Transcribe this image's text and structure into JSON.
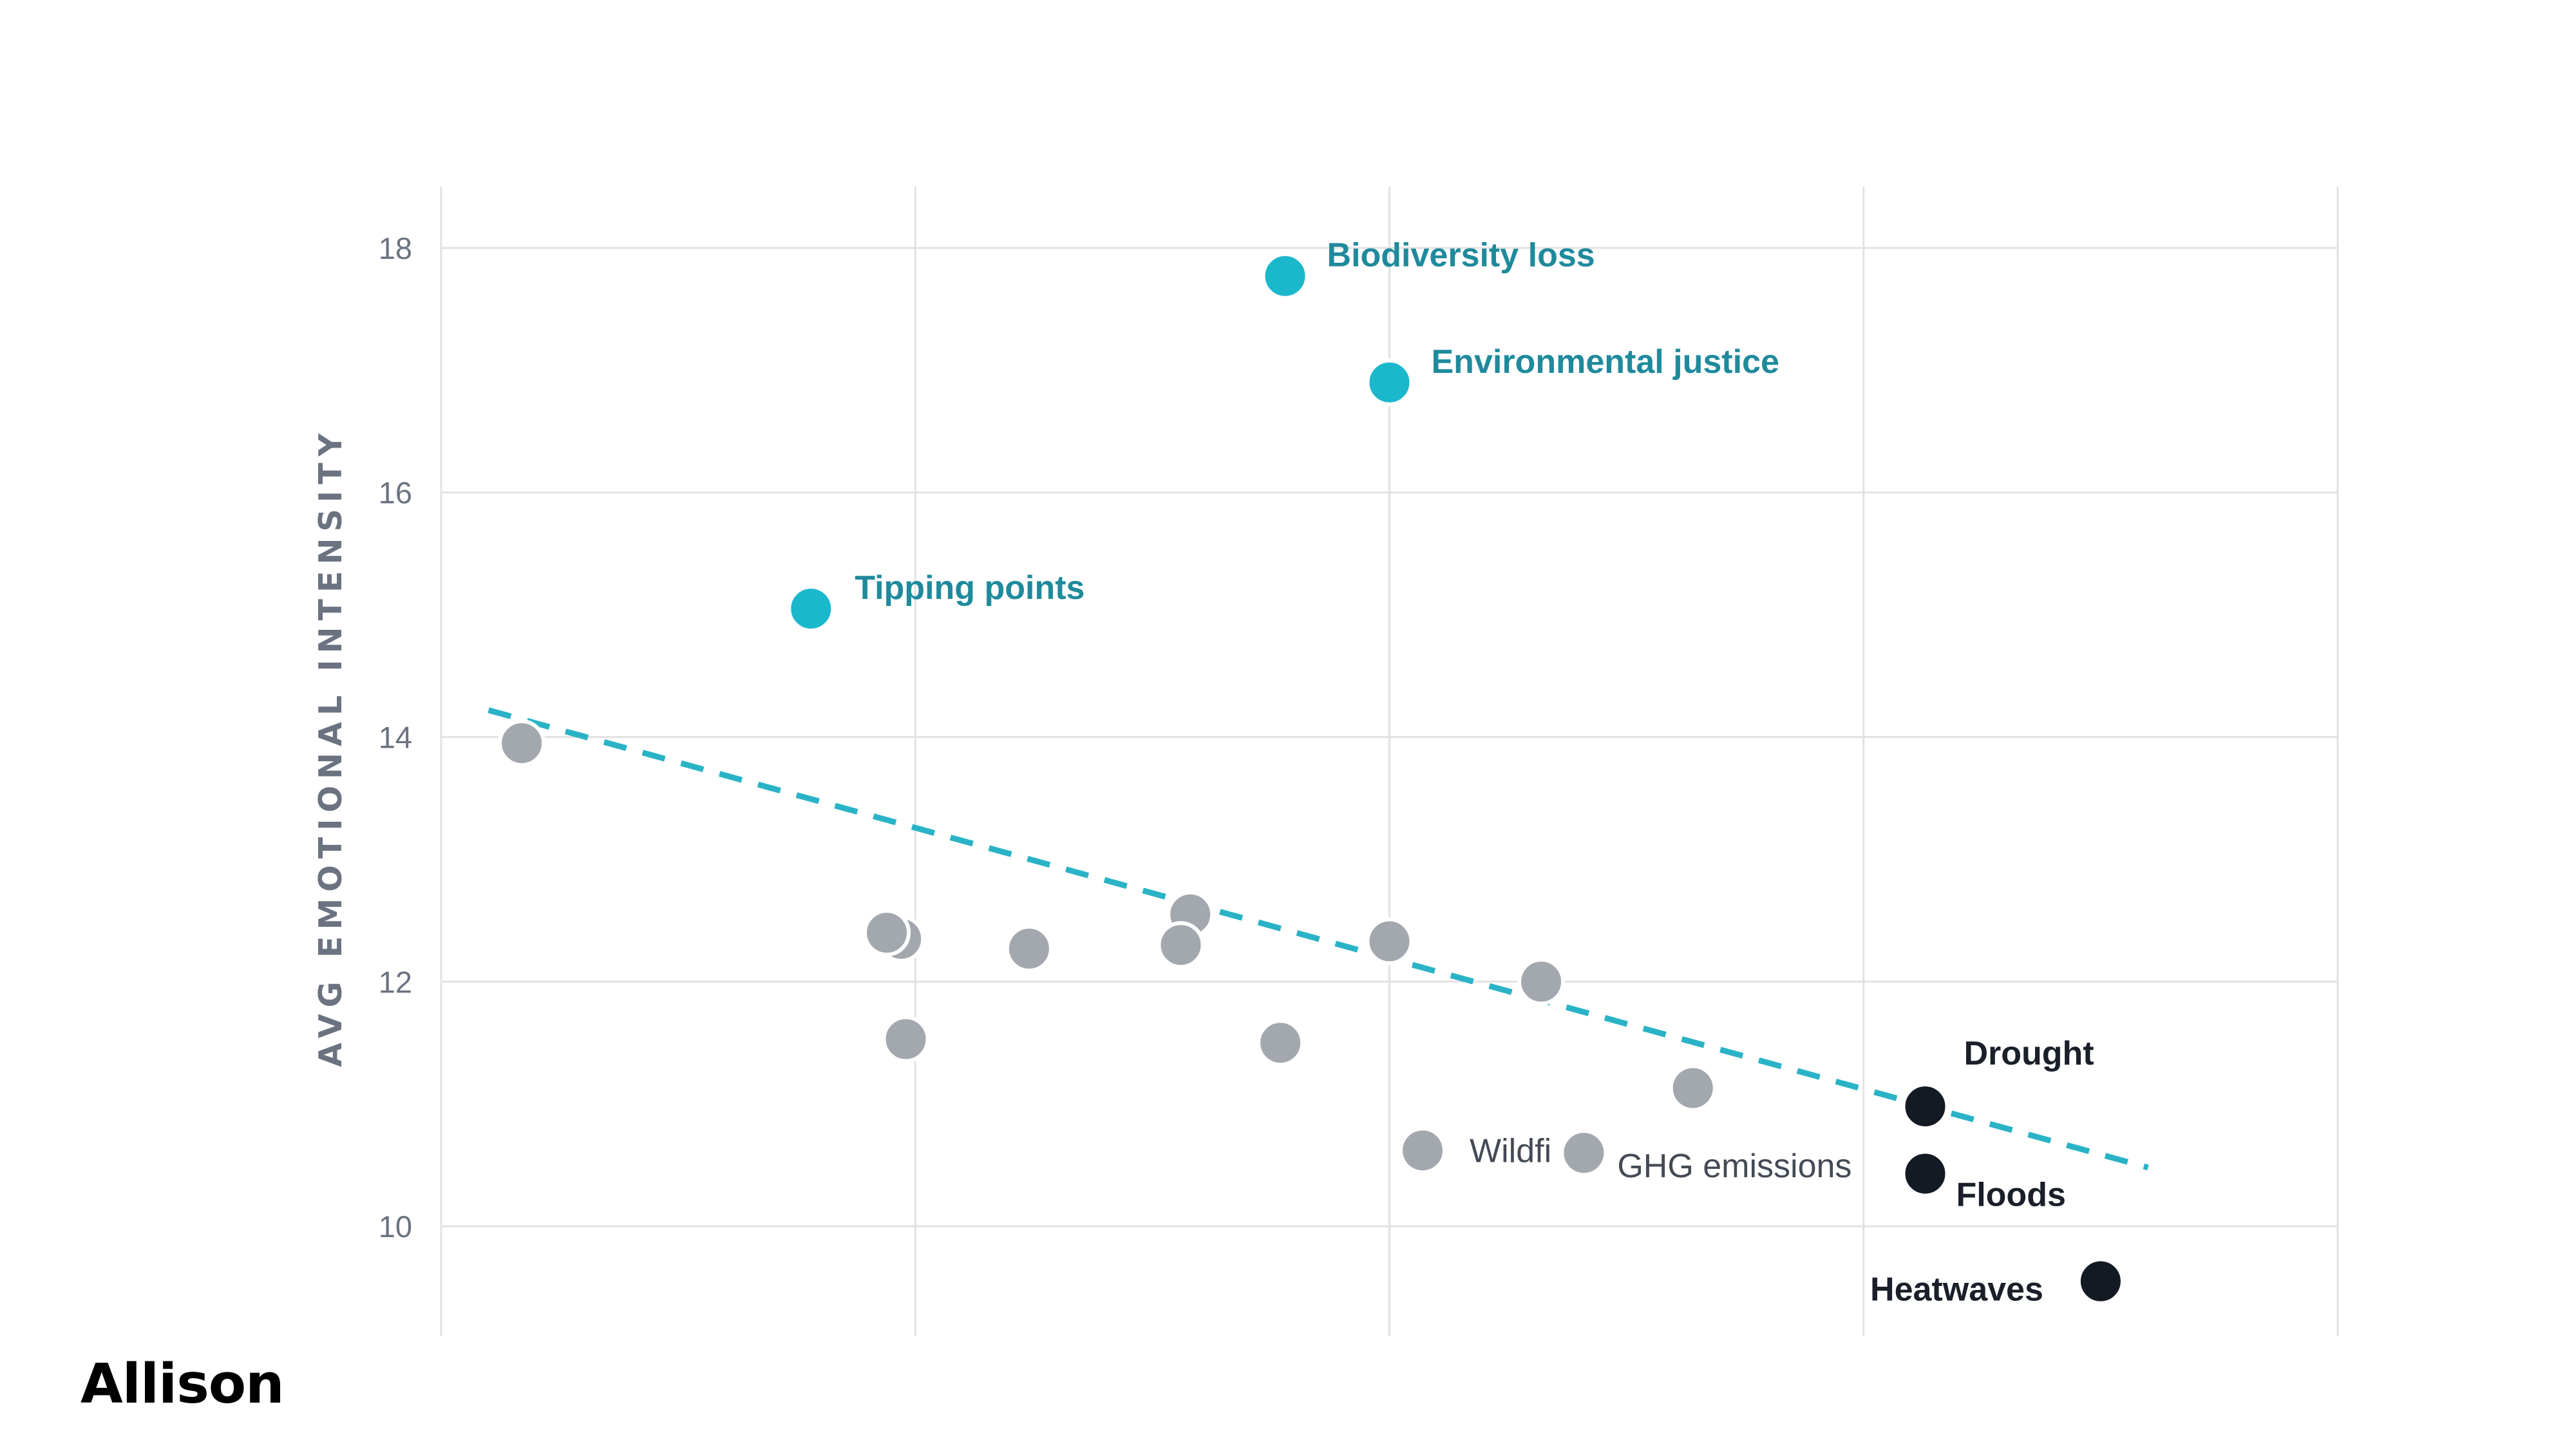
{
  "brand": "Allison",
  "chart_data": {
    "type": "scatter",
    "title": "",
    "xlabel": "",
    "ylabel": "AVG EMOTIONAL INTENSITY",
    "xlim": [
      0,
      4
    ],
    "ylim": [
      9.1,
      18.5
    ],
    "x_gridlines": [
      1,
      2,
      3
    ],
    "y_ticks": [
      10,
      12,
      14,
      16,
      18
    ],
    "grid": true,
    "colors": {
      "highlight": "#1bb8cc",
      "highlight_label": "#1f8a9c",
      "dark": "#141a24",
      "neutral": "#a3a7ae",
      "trend": "#2ab3c6",
      "grid": "#e2e2e2"
    },
    "trendline": {
      "style": "dashed",
      "x": [
        0.1,
        3.6
      ],
      "y": [
        14.22,
        10.48
      ]
    },
    "points": [
      {
        "x": 0.17,
        "y": 13.95,
        "group": "neutral",
        "label": ""
      },
      {
        "x": 0.78,
        "y": 15.05,
        "group": "highlight",
        "label": "Tipping points"
      },
      {
        "x": 1.78,
        "y": 17.77,
        "group": "highlight",
        "label": "Biodiversity loss"
      },
      {
        "x": 2.0,
        "y": 16.9,
        "group": "highlight",
        "label": "Environmental justice"
      },
      {
        "x": 0.97,
        "y": 12.35,
        "group": "neutral",
        "label": ""
      },
      {
        "x": 0.94,
        "y": 12.4,
        "group": "neutral",
        "label": ""
      },
      {
        "x": 0.98,
        "y": 11.53,
        "group": "neutral",
        "label": ""
      },
      {
        "x": 1.24,
        "y": 12.27,
        "group": "neutral",
        "label": ""
      },
      {
        "x": 1.58,
        "y": 12.55,
        "group": "neutral",
        "label": ""
      },
      {
        "x": 1.56,
        "y": 12.3,
        "group": "neutral",
        "label": ""
      },
      {
        "x": 1.77,
        "y": 11.5,
        "group": "neutral",
        "label": ""
      },
      {
        "x": 2.0,
        "y": 12.33,
        "group": "neutral",
        "label": ""
      },
      {
        "x": 2.32,
        "y": 12.0,
        "group": "neutral",
        "label": ""
      },
      {
        "x": 2.64,
        "y": 11.13,
        "group": "neutral",
        "label": ""
      },
      {
        "x": 2.07,
        "y": 10.62,
        "group": "neutral",
        "label": "Wildfi"
      },
      {
        "x": 2.41,
        "y": 10.6,
        "group": "neutral",
        "label": "GHG emissions"
      },
      {
        "x": 3.13,
        "y": 10.98,
        "group": "dark",
        "label": "Drought"
      },
      {
        "x": 3.13,
        "y": 10.43,
        "group": "dark",
        "label": "Floods"
      },
      {
        "x": 3.5,
        "y": 9.55,
        "group": "dark",
        "label": "Heatwaves"
      }
    ]
  }
}
